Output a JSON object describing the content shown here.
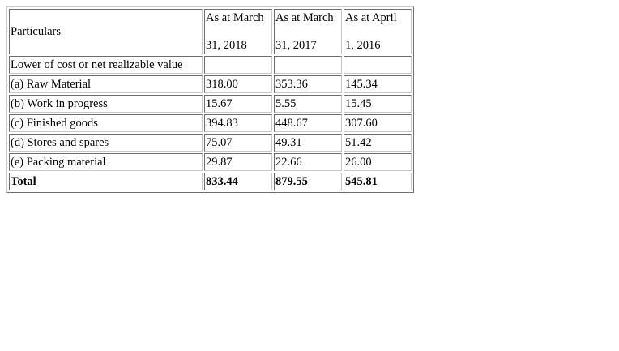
{
  "table": {
    "header": {
      "particulars": "Particulars",
      "columns": [
        {
          "line1": "As at March",
          "line2": "31, 2018"
        },
        {
          "line1": "As at March",
          "line2": "31, 2017"
        },
        {
          "line1": "As at April",
          "line2": "1, 2016"
        }
      ]
    },
    "section_label": "Lower of cost or net realizable value",
    "rows": [
      {
        "label": "(a) Raw Material",
        "values": [
          "318.00",
          "353.36",
          "145.34"
        ]
      },
      {
        "label": "(b) Work in progress",
        "values": [
          "15.67",
          "5.55",
          "15.45"
        ]
      },
      {
        "label": "(c) Finished goods",
        "values": [
          "394.83",
          "448.67",
          "307.60"
        ]
      },
      {
        "label": "(d) Stores and spares",
        "values": [
          "75.07",
          "49.31",
          "51.42"
        ]
      },
      {
        "label": "(e) Packing material",
        "values": [
          "29.87",
          "22.66",
          "26.00"
        ]
      }
    ],
    "total": {
      "label": "Total",
      "values": [
        "833.44",
        "879.55",
        "545.81"
      ]
    }
  }
}
